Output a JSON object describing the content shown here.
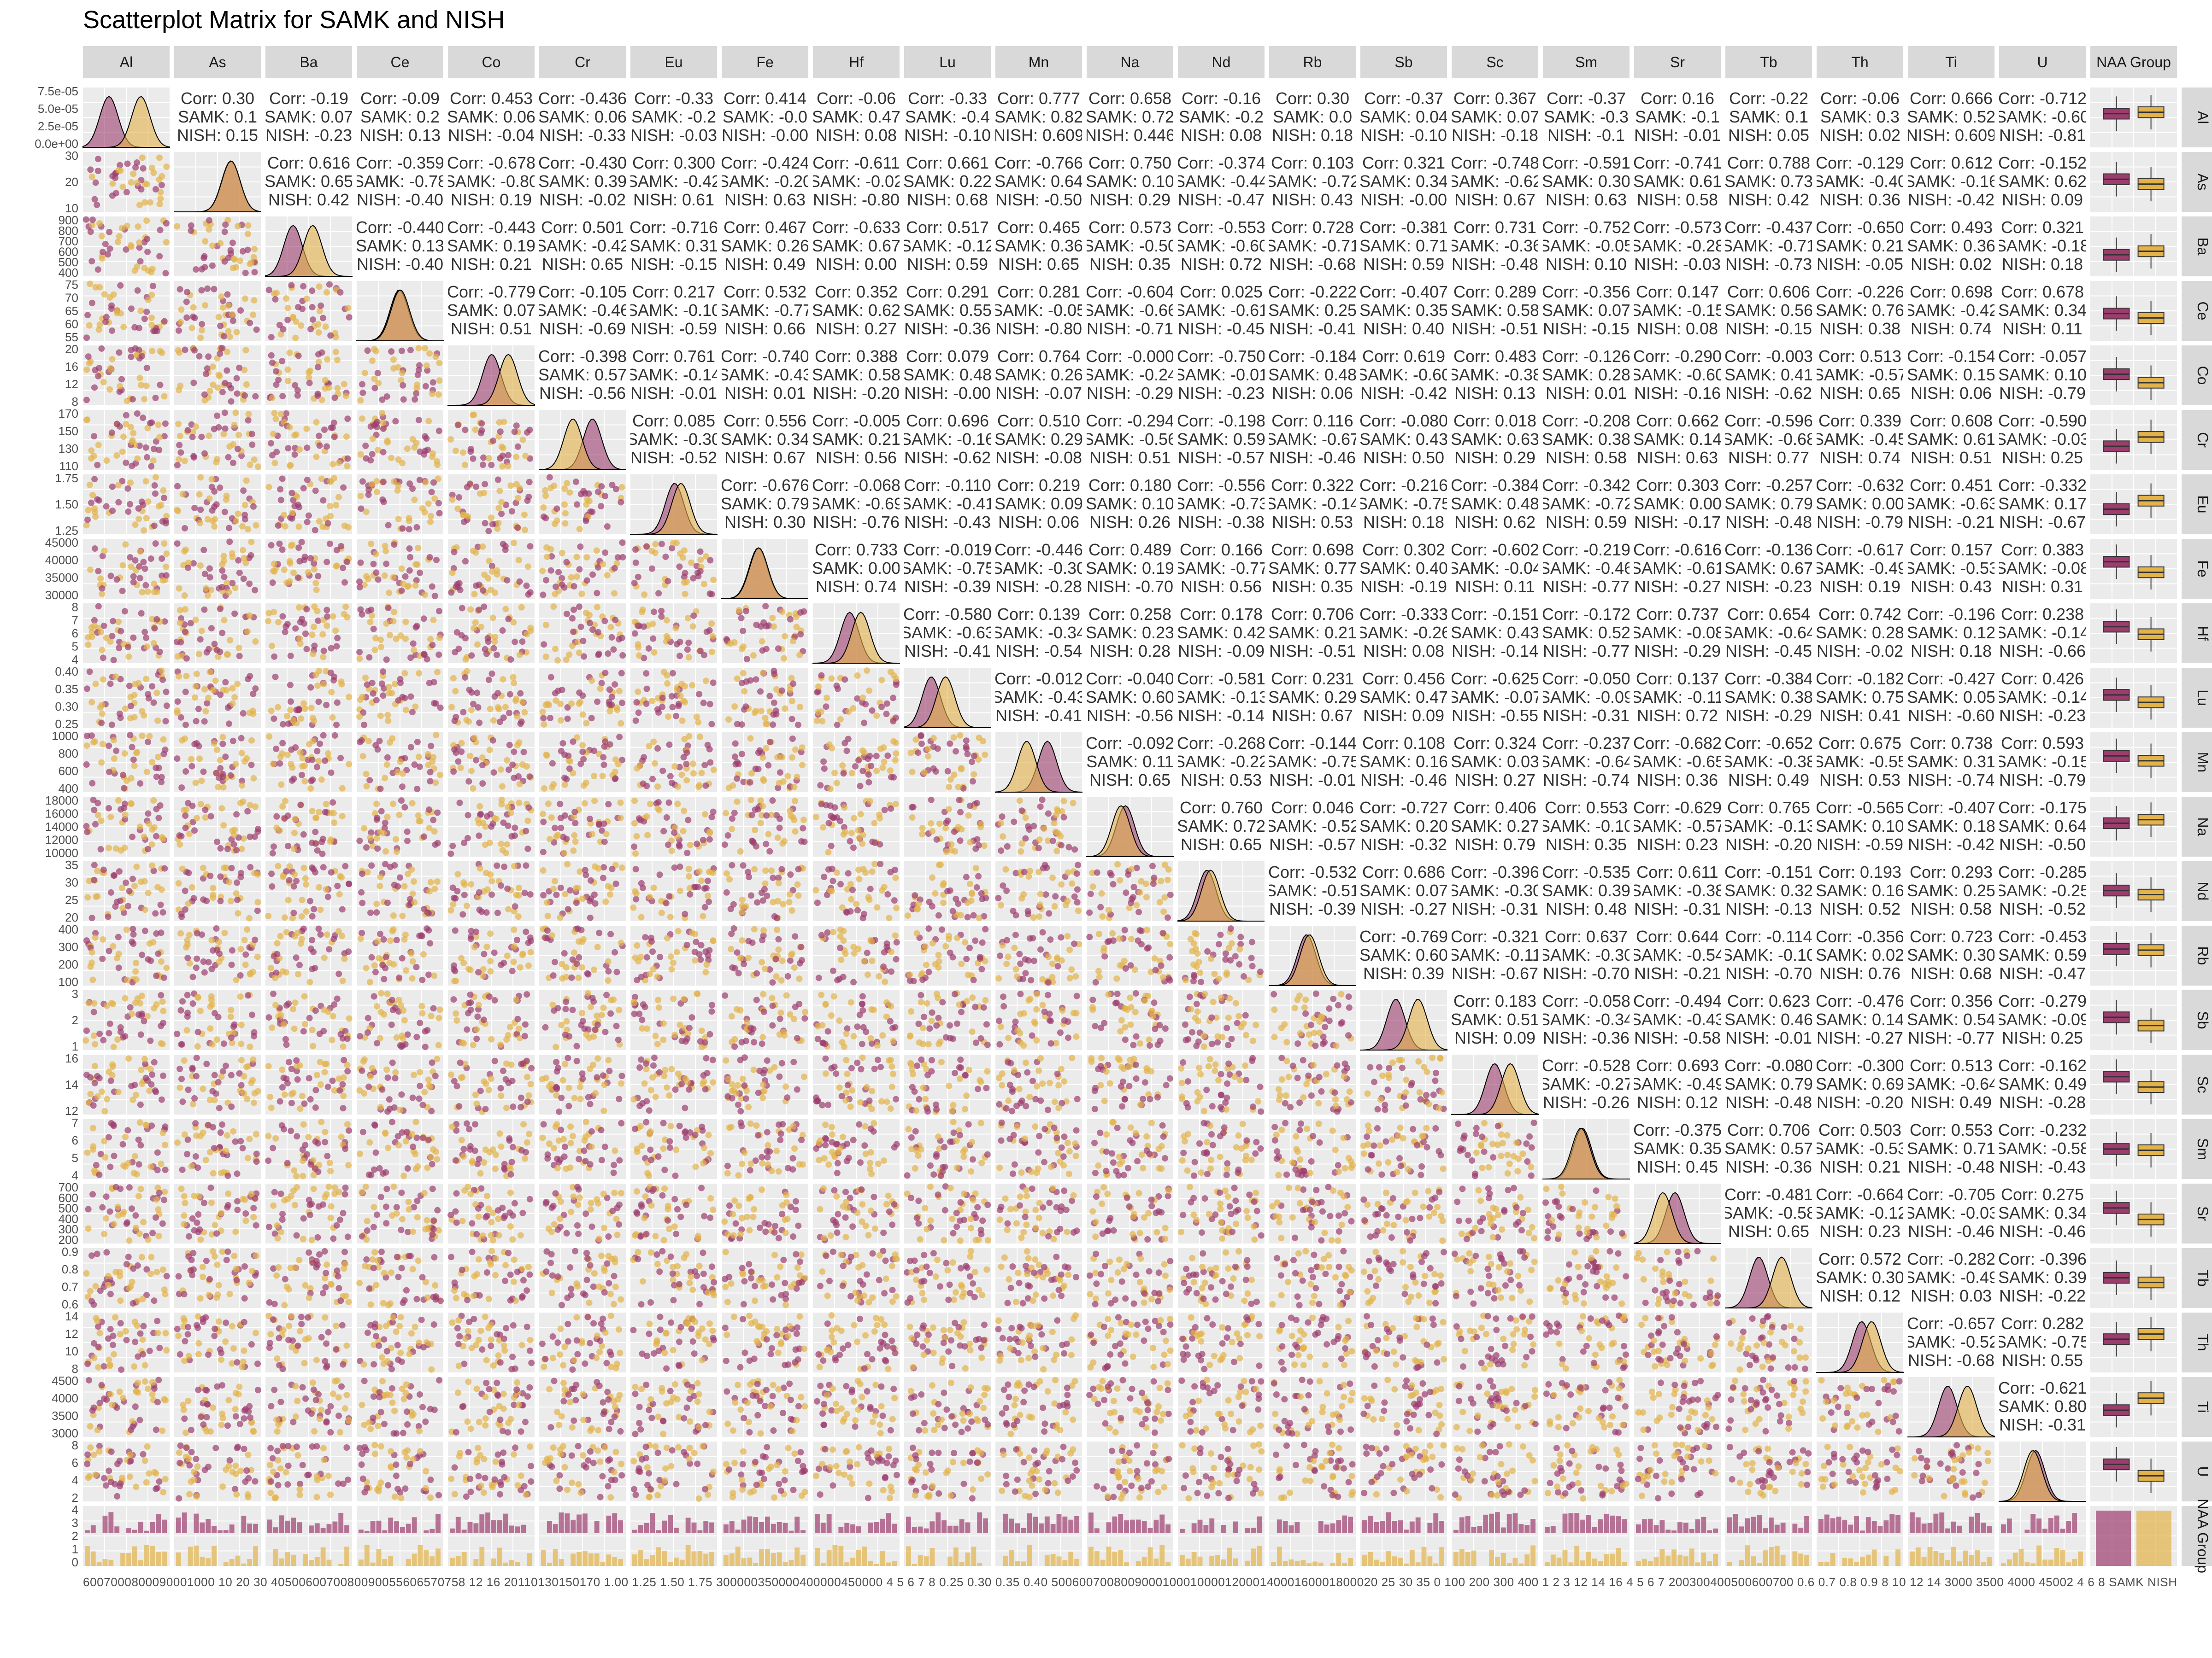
{
  "title": "Scatterplot Matrix for SAMK and NISH",
  "variables": [
    "Al",
    "As",
    "Ba",
    "Ce",
    "Co",
    "Cr",
    "Eu",
    "Fe",
    "Hf",
    "Lu",
    "Mn",
    "Na",
    "Nd",
    "Rb",
    "Sb",
    "Sc",
    "Sm",
    "Sr",
    "Tb",
    "Th",
    "Ti",
    "U",
    "NAA Group"
  ],
  "colors": {
    "SAMK": "#9c3d6e",
    "NISH": "#e3b34a",
    "strip": "#d9d9d9",
    "panel": "#ebebeb",
    "grid": "#ffffff"
  },
  "groups": [
    "SAMK",
    "NISH"
  ],
  "chart_data": {
    "type": "scatter",
    "title": "Scatterplot Matrix for SAMK and NISH",
    "y_tick_labels": {
      "Al": [
        "0.0e+00",
        "2.5e-05",
        "5.0e-05",
        "7.5e-05"
      ],
      "As": [
        "10",
        "20",
        "30"
      ],
      "Ba": [
        "400",
        "500",
        "600",
        "700",
        "800",
        "900"
      ],
      "Ce": [
        "55",
        "60",
        "65",
        "70",
        "75"
      ],
      "Co": [
        "8",
        "12",
        "16",
        "20"
      ],
      "Cr": [
        "110",
        "130",
        "150",
        "170"
      ],
      "Eu": [
        "1.25",
        "1.50",
        "1.75"
      ],
      "Fe": [
        "30000",
        "35000",
        "40000",
        "45000"
      ],
      "Hf": [
        "4",
        "5",
        "6",
        "7",
        "8"
      ],
      "Lu": [
        "0.25",
        "0.30",
        "0.35",
        "0.40"
      ],
      "Mn": [
        "400",
        "600",
        "800",
        "1000"
      ],
      "Na": [
        "10000",
        "12000",
        "14000",
        "16000",
        "18000"
      ],
      "Nd": [
        "20",
        "25",
        "30",
        "35"
      ],
      "Rb": [
        "100",
        "200",
        "300",
        "400"
      ],
      "Sb": [
        "1",
        "2",
        "3"
      ],
      "Sc": [
        "12",
        "14",
        "16"
      ],
      "Sm": [
        "4",
        "5",
        "6",
        "7"
      ],
      "Sr": [
        "200",
        "300",
        "400",
        "500",
        "600",
        "700"
      ],
      "Tb": [
        "0.6",
        "0.7",
        "0.8",
        "0.9"
      ],
      "Th": [
        "8",
        "10",
        "12",
        "14"
      ],
      "Ti": [
        "3000",
        "3500",
        "4000",
        "4500"
      ],
      "U": [
        "2",
        "4",
        "6",
        "8"
      ],
      "NAA Group": [
        "0",
        "1",
        "2",
        "3",
        "4"
      ]
    },
    "x_tick_labels_bottom": "6007000800090001000 10 20 30 4050060070080090055606570758 12 16 20110130150170 1.00 1.25 1.50 1.75 300000350000400000450000 4 5 6 7 8 0.25 0.30 0.35 0.40 50060070080090001000100001200014000160001800020 25 30 35 0 100 200 300 400 1 2 3 12 14 16 4 5 6 7 200300400500600700 0.6 0.7 0.8 0.9 8 10 12 14 3000 3500 4000 45002 4 6 8 SAMK NISH",
    "correlations": [
      [
        "Al",
        "As",
        "0.30",
        "0.1",
        "0.15"
      ],
      [
        "Al",
        "Ba",
        "-0.19",
        "0.07",
        "-0.23"
      ],
      [
        "Al",
        "Ce",
        "-0.09",
        "0.2",
        "0.13"
      ],
      [
        "Al",
        "Co",
        "0.453",
        "0.06",
        "-0.04"
      ],
      [
        "Al",
        "Cr",
        "-0.436",
        "0.06",
        "-0.33"
      ],
      [
        "Al",
        "Eu",
        "-0.33",
        "-0.2",
        "-0.03"
      ],
      [
        "Al",
        "Fe",
        "0.414",
        "-0.0",
        "-0.00"
      ],
      [
        "Al",
        "Hf",
        "-0.06",
        "0.47",
        "0.08"
      ],
      [
        "Al",
        "Lu",
        "-0.33",
        "-0.4",
        "-0.10"
      ],
      [
        "Al",
        "Mn",
        "0.777",
        "0.82",
        "0.609"
      ],
      [
        "Al",
        "Na",
        "0.658",
        "0.72",
        "0.446"
      ],
      [
        "Al",
        "Nd",
        "-0.16",
        "-0.2",
        "0.08"
      ],
      [
        "Al",
        "Rb",
        "0.30",
        "0.0",
        "0.18"
      ],
      [
        "Al",
        "Sb",
        "-0.37",
        "0.04",
        "-0.10"
      ],
      [
        "Al",
        "Sc",
        "0.367",
        "0.07",
        "-0.18"
      ],
      [
        "Al",
        "Sm",
        "-0.37",
        "-0.3",
        "-0.1"
      ],
      [
        "Al",
        "Sr",
        "0.16",
        "-0.1",
        "-0.01"
      ],
      [
        "Al",
        "Tb",
        "-0.22",
        "0.1",
        "0.05"
      ],
      [
        "Al",
        "Th",
        "-0.06",
        "0.3",
        "0.02"
      ],
      [
        "Al",
        "Ti",
        "0.666",
        "0.52",
        "0.609"
      ],
      [
        "Al",
        "U",
        "-0.712",
        "-0.60",
        "-0.81"
      ]
    ]
  }
}
